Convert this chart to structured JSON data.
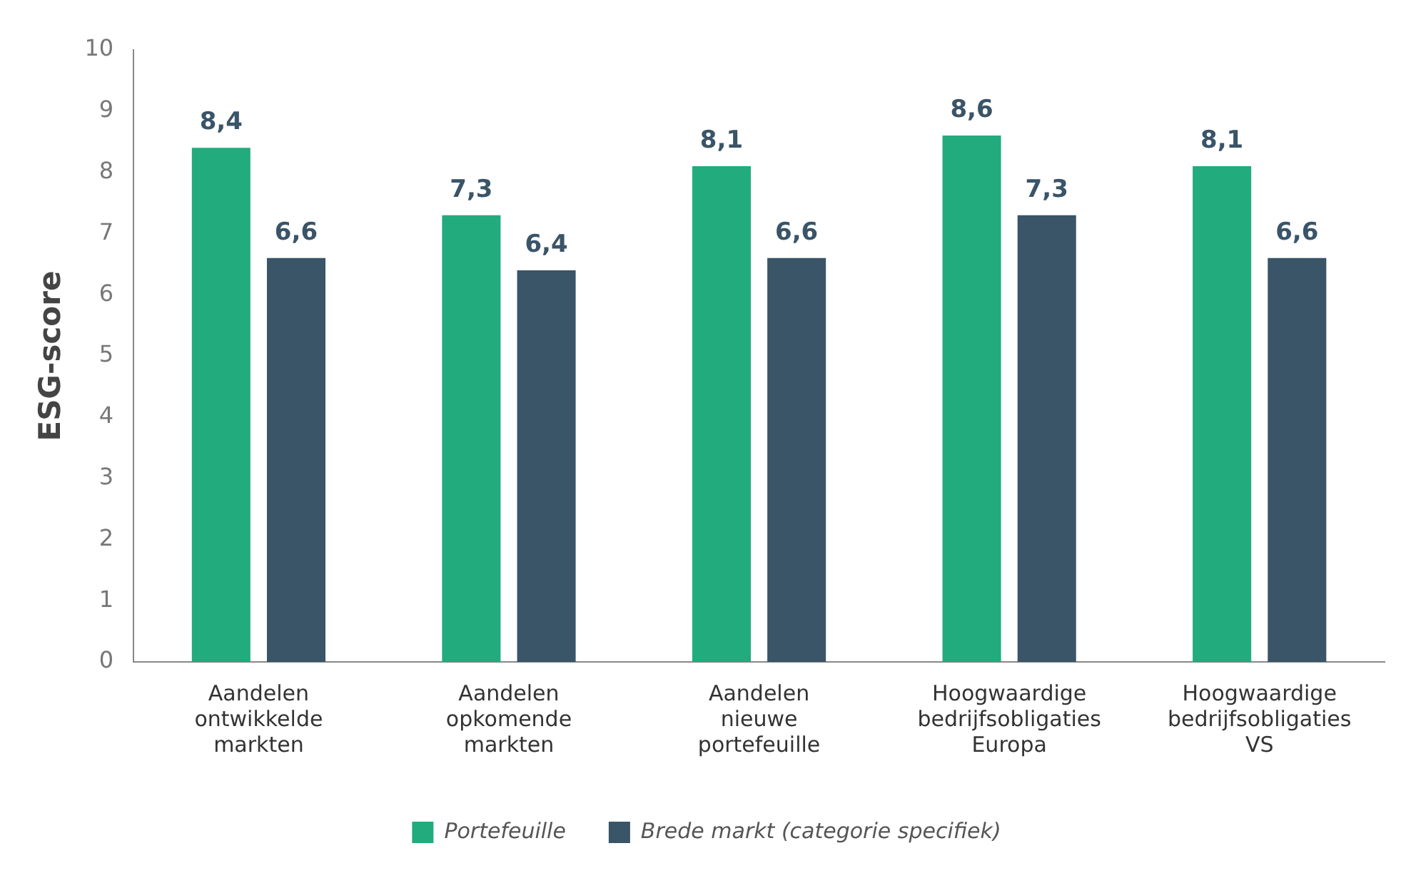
{
  "chart_data": {
    "type": "bar",
    "ylabel": "ESG-score",
    "categories": [
      "Aandelen ontwikkelde markten",
      "Aandelen opkomende markten",
      "Aandelen nieuwe portefeuille",
      "Hoogwaardige bedrijfsobligaties Europa",
      "Hoogwaardige bedrijfsobligaties VS"
    ],
    "series": [
      {
        "name": "Portefeuille",
        "color": "#22ab7c",
        "values": [
          8.4,
          7.3,
          8.1,
          8.6,
          8.1
        ],
        "value_labels": [
          "8,4",
          "7,3",
          "8,1",
          "8,6",
          "8,1"
        ]
      },
      {
        "name": "Brede markt (categorie specifiek)",
        "color": "#3a5468",
        "values": [
          6.6,
          6.4,
          6.6,
          7.3,
          6.6
        ],
        "value_labels": [
          "6,6",
          "6,4",
          "6,6",
          "7,3",
          "6,6"
        ]
      }
    ],
    "ylim": [
      0,
      10
    ],
    "yticks": [
      0,
      1,
      2,
      3,
      4,
      5,
      6,
      7,
      8,
      9,
      10
    ],
    "grid": false,
    "legend": "bottom"
  }
}
